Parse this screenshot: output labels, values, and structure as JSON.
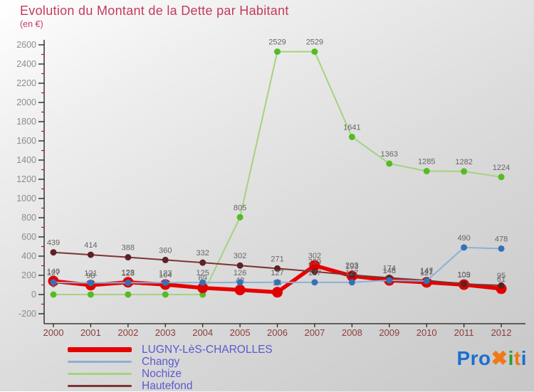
{
  "header": {
    "title": "Evolution du Montant de la Dette par Habitant",
    "subtitle": "(en €)"
  },
  "chart_data": {
    "type": "line",
    "title": "Evolution du Montant de la Dette par Habitant",
    "unit": "en €",
    "x": [
      2000,
      2001,
      2002,
      2003,
      2004,
      2005,
      2006,
      2007,
      2008,
      2009,
      2010,
      2011,
      2012
    ],
    "ylim": [
      -200,
      2600
    ],
    "ytick_step": 200,
    "grid": false,
    "legend_position": "bottom-left",
    "series": [
      {
        "name": "LUGNY-LèS-CHAROLLES",
        "line_color": "#e60000",
        "marker_color": "#e00000",
        "line_width": 5.5,
        "marker_r": 7.5,
        "z": 2,
        "values": [
          140,
          98,
          128,
          104,
          69,
          48,
          24,
          302,
          193,
          148,
          127,
          103,
          61
        ]
      },
      {
        "name": "Changy",
        "line_color": "#8cb0d6",
        "marker_color": "#3273b8",
        "line_width": 2,
        "marker_r": 4.5,
        "z": 4,
        "values": [
          127,
          121,
          123,
          123,
          125,
          126,
          127,
          127,
          127,
          148,
          141,
          490,
          478
        ]
      },
      {
        "name": "Nochize",
        "line_color": "#a4d37e",
        "marker_color": "#55bb22",
        "line_width": 2,
        "marker_r": 4.5,
        "z": 1,
        "values": [
          0,
          0,
          0,
          0,
          0,
          805,
          2529,
          2529,
          1641,
          1363,
          1285,
          1282,
          1224
        ]
      },
      {
        "name": "Hautefond",
        "line_color": "#7d3434",
        "marker_color": "#5e2222",
        "line_width": 2,
        "marker_r": 4.5,
        "z": 3,
        "values": [
          439,
          414,
          388,
          360,
          332,
          302,
          271,
          239,
          203,
          174,
          147,
          109,
          95
        ]
      }
    ],
    "colors": {
      "axis": "#1a1a1a",
      "ytick_label": "#8c8c8c",
      "xtick_label": "#8b3e3e",
      "minor_tick": "#dd0000",
      "data_label": "#666666"
    }
  },
  "logo": {
    "name": "Proxiti",
    "letters": [
      {
        "ch": "P",
        "color": "#1a6fd4"
      },
      {
        "ch": "r",
        "color": "#1a6fd4"
      },
      {
        "ch": "o",
        "color": "#1a6fd4"
      },
      {
        "ch": "✖",
        "color": "#f07818"
      },
      {
        "ch": "i",
        "color": "#2e9e2e"
      },
      {
        "ch": "t",
        "color": "#f07818"
      },
      {
        "ch": "i",
        "color": "#1a6fd4"
      }
    ]
  }
}
